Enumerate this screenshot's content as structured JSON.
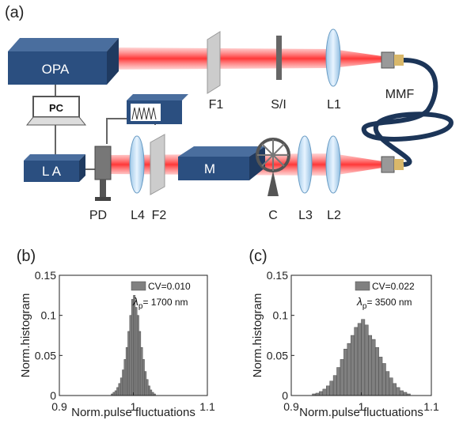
{
  "diagram": {
    "panel_label": "(a)",
    "labels": {
      "opa": "OPA",
      "pc": "PC",
      "la": "L A",
      "f1": "F1",
      "si": "S/I",
      "l1": "L1",
      "mmf": "MMF",
      "pd": "PD",
      "l4": "L4",
      "f2": "F2",
      "m": "M",
      "c": "C",
      "l3": "L3",
      "l2": "L2"
    }
  },
  "chart_data": [
    {
      "type": "histogram",
      "label": "(b)",
      "xlabel": "Norm.pulse fluctuations",
      "ylabel": "Norm.histogram",
      "bins": [
        0.97,
        0.9725,
        0.975,
        0.9775,
        0.98,
        0.9825,
        0.985,
        0.9875,
        0.99,
        0.9925,
        0.995,
        0.9975,
        1.0,
        1.0025,
        1.005,
        1.0075,
        1.01,
        1.0125,
        1.015,
        1.0175,
        1.02,
        1.0225,
        1.025,
        1.0275,
        1.03
      ],
      "series": [
        {
          "name": "CV=0.010",
          "color": "#808080",
          "values": [
            0.002,
            0.004,
            0.006,
            0.01,
            0.015,
            0.022,
            0.032,
            0.045,
            0.06,
            0.08,
            0.1,
            0.12,
            0.125,
            0.11,
            0.1,
            0.08,
            0.06,
            0.045,
            0.03,
            0.02,
            0.012,
            0.007,
            0.004,
            0.002
          ]
        }
      ],
      "annotation": {
        "symbol": "λ",
        "subscript": "p",
        "text": "= 1700 nm"
      },
      "legend": "upper right",
      "xlim": [
        0.9,
        1.1
      ],
      "ylim": [
        0,
        0.15
      ],
      "xticks": [
        0.9,
        1,
        1.1
      ],
      "yticks": [
        0,
        0.05,
        0.1,
        0.15
      ]
    },
    {
      "type": "histogram",
      "label": "(c)",
      "xlabel": "Norm.pulse fluctuations",
      "ylabel": "Norm.histogram",
      "bins": [
        0.93,
        0.935,
        0.94,
        0.945,
        0.95,
        0.955,
        0.96,
        0.965,
        0.97,
        0.975,
        0.98,
        0.985,
        0.99,
        0.995,
        1.0,
        1.005,
        1.01,
        1.015,
        1.02,
        1.025,
        1.03,
        1.035,
        1.04,
        1.045,
        1.05,
        1.055,
        1.06,
        1.065,
        1.07
      ],
      "series": [
        {
          "name": "CV=0.022",
          "color": "#808080",
          "values": [
            0.002,
            0.003,
            0.005,
            0.008,
            0.012,
            0.018,
            0.025,
            0.035,
            0.045,
            0.058,
            0.065,
            0.075,
            0.085,
            0.09,
            0.095,
            0.088,
            0.075,
            0.07,
            0.06,
            0.048,
            0.04,
            0.03,
            0.022,
            0.015,
            0.01,
            0.006,
            0.004,
            0.002
          ]
        }
      ],
      "annotation": {
        "symbol": "λ",
        "subscript": "p",
        "text": "= 3500 nm"
      },
      "legend": "upper right",
      "xlim": [
        0.9,
        1.1
      ],
      "ylim": [
        0,
        0.15
      ],
      "xticks": [
        0.9,
        1,
        1.1
      ],
      "yticks": [
        0,
        0.05,
        0.1,
        0.15
      ]
    }
  ]
}
